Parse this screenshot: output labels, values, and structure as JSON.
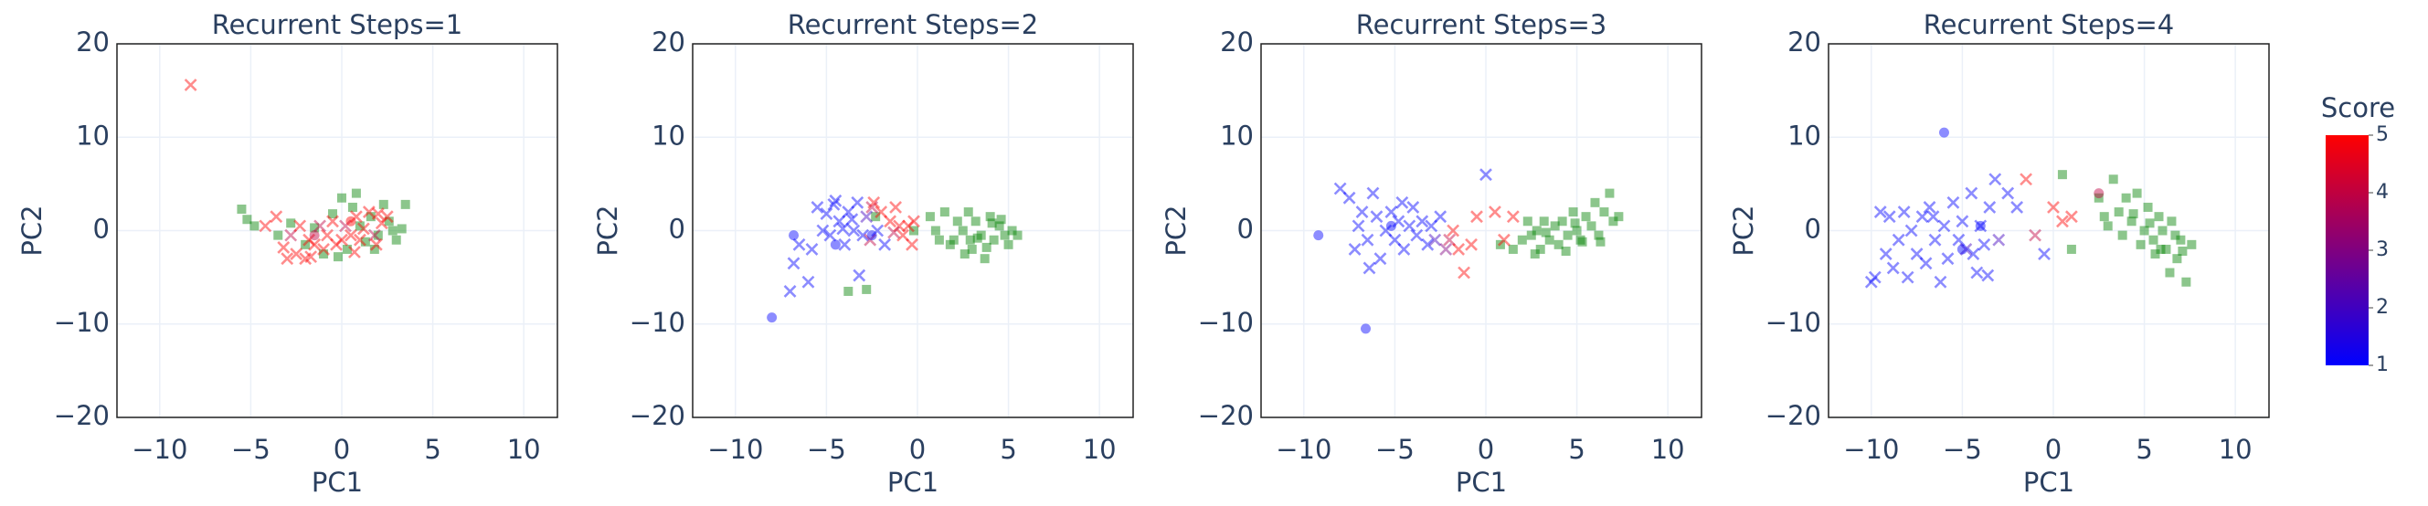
{
  "chart_data": [
    {
      "type": "scatter",
      "title": "Recurrent Steps=1",
      "x_label": "PC1",
      "y_label": "PC2",
      "xlim": [
        -12.35,
        11.85
      ],
      "ylim": [
        -20,
        20
      ],
      "xticks": [
        {
          "value": -10,
          "label": "−10"
        },
        {
          "value": -5,
          "label": "−5"
        },
        0,
        5,
        10
      ],
      "yticks": [
        {
          "value": -20,
          "label": "−20"
        },
        {
          "value": -10,
          "label": "−10"
        },
        0,
        10,
        20
      ],
      "grid": true,
      "clim": [
        1,
        5
      ],
      "colorscale": [
        "#0000ff",
        "#ff0000"
      ],
      "series": [
        {
          "marker": "square",
          "color": "#008000",
          "x": [
            -5.5,
            -5.2,
            -4.8,
            -3.5,
            -2.8,
            -2,
            -1.5,
            -1,
            -0.5,
            0,
            0.3,
            0.6,
            1,
            1.3,
            1.6,
            2,
            2.3,
            2.6,
            3,
            3.3,
            3.5,
            0.8,
            -0.2,
            1.8,
            2.8
          ],
          "y": [
            2.3,
            1.2,
            0.5,
            -0.5,
            0.8,
            -1.5,
            0.3,
            -2.5,
            1.8,
            3.5,
            -2,
            2.5,
            0.5,
            -1.2,
            1.5,
            -0.5,
            2.8,
            1,
            -1,
            0.2,
            2.8,
            4,
            -2.8,
            -2,
            0
          ]
        },
        {
          "marker": "x",
          "x": [
            -8.3,
            -4.2,
            -3.6,
            -3,
            -2.8,
            -2.5,
            -2.3,
            -2,
            -1.8,
            -1.5,
            -1.2,
            -1,
            -0.8,
            -0.5,
            -0.3,
            0,
            0.2,
            0.5,
            0.8,
            1,
            1.2,
            1.5,
            1.8,
            2,
            2.2,
            2.5,
            -3.2,
            -1.7,
            0.7,
            1.9
          ],
          "y": [
            15.6,
            0.5,
            1.5,
            -3,
            -0.5,
            -2.5,
            0.5,
            -3,
            -1,
            -1.5,
            0.5,
            -2,
            -0.5,
            1,
            -1.5,
            -1,
            0.5,
            -0.5,
            1.5,
            -1,
            0.2,
            2,
            -0.5,
            1.8,
            0.8,
            1.5,
            -1.8,
            -2.8,
            -2.3,
            -1.5
          ],
          "scores": [
            5,
            5,
            5,
            5,
            4,
            5,
            5,
            5,
            5,
            5,
            4,
            5,
            5,
            5,
            5,
            5,
            4,
            5,
            5,
            5,
            5,
            5,
            4,
            5,
            5,
            5,
            5,
            5,
            5,
            5
          ]
        },
        {
          "marker": "circle",
          "x": [
            -1.5,
            0.5
          ],
          "y": [
            -0.5,
            1
          ],
          "scores": [
            4,
            5
          ]
        }
      ]
    },
    {
      "type": "scatter",
      "title": "Recurrent Steps=2",
      "x_label": "PC1",
      "y_label": "PC2",
      "xlim": [
        -12.35,
        11.85
      ],
      "ylim": [
        -20,
        20
      ],
      "xticks": [
        {
          "value": -10,
          "label": "−10"
        },
        {
          "value": -5,
          "label": "−5"
        },
        0,
        5,
        10
      ],
      "yticks": [
        {
          "value": -20,
          "label": "−20"
        },
        {
          "value": -10,
          "label": "−10"
        },
        0,
        10,
        20
      ],
      "grid": true,
      "clim": [
        1,
        5
      ],
      "colorscale": [
        "#0000ff",
        "#ff0000"
      ],
      "series": [
        {
          "marker": "square",
          "color": "#008000",
          "x": [
            -2.3,
            0.7,
            1,
            1.5,
            2,
            2.2,
            2.5,
            2.8,
            3,
            3.2,
            3.5,
            3.7,
            4,
            4.2,
            4.5,
            4.8,
            5,
            5.2,
            5.5,
            1.8,
            2.6,
            3.3,
            4.1,
            4.6,
            -0.2,
            -3.8,
            -2.8,
            2.9,
            3.8,
            1.2
          ],
          "y": [
            1.5,
            1.5,
            0,
            2,
            -1,
            1,
            0,
            2,
            -2,
            1,
            -0.5,
            -3,
            1.5,
            -1,
            0.5,
            -0.5,
            -1.5,
            0,
            -0.5,
            -1.5,
            -2.5,
            -0.8,
            0.8,
            1.2,
            0,
            -6.5,
            -6.3,
            -1,
            -1.8,
            -1
          ]
        },
        {
          "marker": "x",
          "x": [
            -7,
            -6.8,
            -6.5,
            -6,
            -5.5,
            -5.2,
            -5,
            -4.8,
            -4.5,
            -4.3,
            -4,
            -3.8,
            -3.5,
            -3.3,
            -3,
            -2.8,
            -2.5,
            -2.2,
            -2,
            -1.8,
            -1.5,
            -1.2,
            -1,
            -0.8,
            -0.5,
            -0.2,
            -3.2,
            -4.1,
            -2.6,
            -5.8,
            -3.6,
            -2.4,
            -1.3,
            -0.3,
            -4.6
          ],
          "y": [
            -6.5,
            -3.5,
            -1.5,
            -5.5,
            2.5,
            0,
            1.8,
            -0.5,
            3.2,
            1,
            -1.5,
            2,
            0,
            3,
            -0.5,
            1.5,
            2.5,
            0,
            2,
            -1.5,
            1,
            2.5,
            0.5,
            -0.5,
            0.5,
            1,
            -4.8,
            0.2,
            -1,
            -2,
            1.2,
            3,
            -0.2,
            -1.5,
            2.8
          ],
          "scores": [
            1,
            1,
            1,
            1,
            1,
            1,
            1,
            1,
            1,
            1,
            1,
            1,
            1,
            1,
            1,
            2,
            4,
            1,
            5,
            1,
            5,
            5,
            5,
            5,
            5,
            5,
            1,
            1,
            4,
            1,
            1,
            5,
            4,
            5,
            1
          ]
        },
        {
          "marker": "circle",
          "x": [
            -8,
            -6.8,
            -4.5,
            -2.5
          ],
          "y": [
            -9.3,
            -0.5,
            -1.5,
            -0.5
          ],
          "scores": [
            1,
            1,
            1,
            1
          ]
        }
      ]
    },
    {
      "type": "scatter",
      "title": "Recurrent Steps=3",
      "x_label": "PC1",
      "y_label": "PC2",
      "xlim": [
        -12.35,
        11.85
      ],
      "ylim": [
        -20,
        20
      ],
      "xticks": [
        {
          "value": -10,
          "label": "−10"
        },
        {
          "value": -5,
          "label": "−5"
        },
        0,
        5,
        10
      ],
      "yticks": [
        {
          "value": -20,
          "label": "−20"
        },
        {
          "value": -10,
          "label": "−10"
        },
        0,
        10,
        20
      ],
      "grid": true,
      "clim": [
        1,
        5
      ],
      "colorscale": [
        "#0000ff",
        "#ff0000"
      ],
      "series": [
        {
          "marker": "square",
          "color": "#008000",
          "x": [
            1.5,
            2,
            2.3,
            2.5,
            2.8,
            3,
            3.2,
            3.5,
            3.8,
            4,
            4.2,
            4.5,
            4.8,
            5,
            5.2,
            5.5,
            5.8,
            6,
            6.2,
            6.5,
            6.8,
            7,
            7.3,
            3.3,
            4.4,
            5.3,
            6.3,
            2.7,
            4.9,
            0.8
          ],
          "y": [
            -2,
            -1,
            1,
            -0.5,
            0,
            -2,
            1,
            -1,
            0.5,
            -1.5,
            1,
            -0.5,
            2,
            0,
            -1,
            1.5,
            0.5,
            3,
            -0.5,
            2,
            4,
            1,
            1.5,
            -0.2,
            -2.2,
            -1.2,
            -1.2,
            -2.5,
            0.8,
            -1.5
          ]
        },
        {
          "marker": "x",
          "x": [
            -8,
            -7.5,
            -7.2,
            -7,
            -6.8,
            -6.5,
            -6.2,
            -6,
            -5.8,
            -5.5,
            -5.2,
            -5,
            -4.8,
            -4.5,
            -4.2,
            -4,
            -3.8,
            -3.5,
            -3.2,
            -3,
            -2.8,
            -2.5,
            -2.2,
            -2,
            -1.8,
            -1.5,
            -1.2,
            -0.8,
            -0.5,
            0,
            0.5,
            1,
            1.5,
            -6.4,
            -4.6
          ],
          "y": [
            4.5,
            3.5,
            -2,
            0.5,
            2,
            -1,
            4,
            1.5,
            -3,
            0,
            2,
            -1,
            1,
            -2,
            0.5,
            2.5,
            -0.5,
            1,
            -1.5,
            0.5,
            -1,
            1.5,
            -2,
            -1,
            0,
            -2,
            -4.5,
            -1.5,
            1.5,
            6,
            2,
            -1,
            1.5,
            -4,
            3
          ],
          "scores": [
            1,
            1,
            1,
            1,
            1,
            1,
            1,
            1,
            1,
            1,
            1,
            1,
            1,
            1,
            1,
            1,
            1,
            1,
            1,
            1,
            2,
            1,
            3,
            4,
            5,
            5,
            5,
            5,
            5,
            1,
            5,
            5,
            5,
            1,
            1
          ]
        },
        {
          "marker": "circle",
          "x": [
            -9.2,
            -6.6,
            -5.2
          ],
          "y": [
            -0.5,
            -10.5,
            0.5
          ],
          "scores": [
            1,
            1,
            1
          ]
        }
      ]
    },
    {
      "type": "scatter",
      "title": "Recurrent Steps=4",
      "x_label": "PC1",
      "y_label": "PC2",
      "xlim": [
        -12.35,
        11.85
      ],
      "ylim": [
        -20,
        20
      ],
      "xticks": [
        {
          "value": -10,
          "label": "−10"
        },
        {
          "value": -5,
          "label": "−5"
        },
        0,
        5,
        10
      ],
      "yticks": [
        {
          "value": -20,
          "label": "−20"
        },
        {
          "value": -10,
          "label": "−10"
        },
        0,
        10,
        20
      ],
      "grid": true,
      "clim": [
        1,
        5
      ],
      "colorscale": [
        "#0000ff",
        "#ff0000"
      ],
      "colorbar": {
        "title": "Score",
        "ticks": [
          1,
          2,
          3,
          4,
          5
        ]
      },
      "series": [
        {
          "marker": "square",
          "color": "#008000",
          "x": [
            1,
            2.5,
            3,
            3.3,
            3.6,
            4,
            4.3,
            4.6,
            5,
            5.2,
            5.5,
            5.8,
            6,
            6.2,
            6.5,
            6.8,
            7,
            7.3,
            7.6,
            4.8,
            5.6,
            6.4,
            3.8,
            4.4,
            5.3,
            6.7,
            7.1,
            2.8,
            0.5,
            5.9
          ],
          "y": [
            -2,
            3.5,
            0.5,
            5.5,
            2,
            3.5,
            1,
            4,
            0,
            2.5,
            -1,
            1.5,
            0,
            -2,
            1,
            -3,
            -1,
            -5.5,
            -1.5,
            -1.5,
            -2.5,
            -4.5,
            -0.5,
            1.8,
            0.8,
            -0.5,
            -2.2,
            1.5,
            6,
            -2
          ]
        },
        {
          "marker": "x",
          "x": [
            -10,
            -9.8,
            -9.5,
            -9.2,
            -9,
            -8.8,
            -8.5,
            -8.2,
            -8,
            -7.8,
            -7.5,
            -7.2,
            -7,
            -6.8,
            -6.5,
            -6.2,
            -6,
            -5.8,
            -5.5,
            -5.2,
            -5,
            -4.8,
            -4.5,
            -4.2,
            -4,
            -3.8,
            -3.5,
            -3.2,
            -3,
            -2.5,
            -2,
            -1.5,
            -1,
            -0.5,
            0,
            0.5,
            1,
            -6.6,
            -4.4,
            -3.6
          ],
          "y": [
            -5.5,
            -5,
            2,
            -2.5,
            1.5,
            -4,
            -1,
            2,
            -5,
            0,
            -2.5,
            1.5,
            -3.5,
            2.5,
            -1,
            -5.5,
            0.5,
            -3,
            3,
            -1,
            1,
            -2,
            4,
            -4.5,
            0.5,
            -1.5,
            2.5,
            5.5,
            -1,
            4,
            2.5,
            5.5,
            -0.5,
            -2.5,
            2.5,
            1,
            1.5,
            1.5,
            -2.5,
            -4.8
          ],
          "scores": [
            1,
            1,
            1,
            1,
            1,
            1,
            1,
            1,
            1,
            1,
            1,
            1,
            1,
            1,
            1,
            1,
            1,
            1,
            1,
            1,
            1,
            2,
            1,
            1,
            1,
            1,
            1,
            1,
            2,
            1,
            1,
            5,
            4,
            1,
            5,
            5,
            5,
            1,
            1,
            1
          ]
        },
        {
          "marker": "circle",
          "x": [
            -6,
            -4,
            2.5,
            -5
          ],
          "y": [
            10.5,
            0.5,
            4,
            -2
          ],
          "scores": [
            1,
            1,
            4,
            1
          ]
        }
      ]
    }
  ]
}
